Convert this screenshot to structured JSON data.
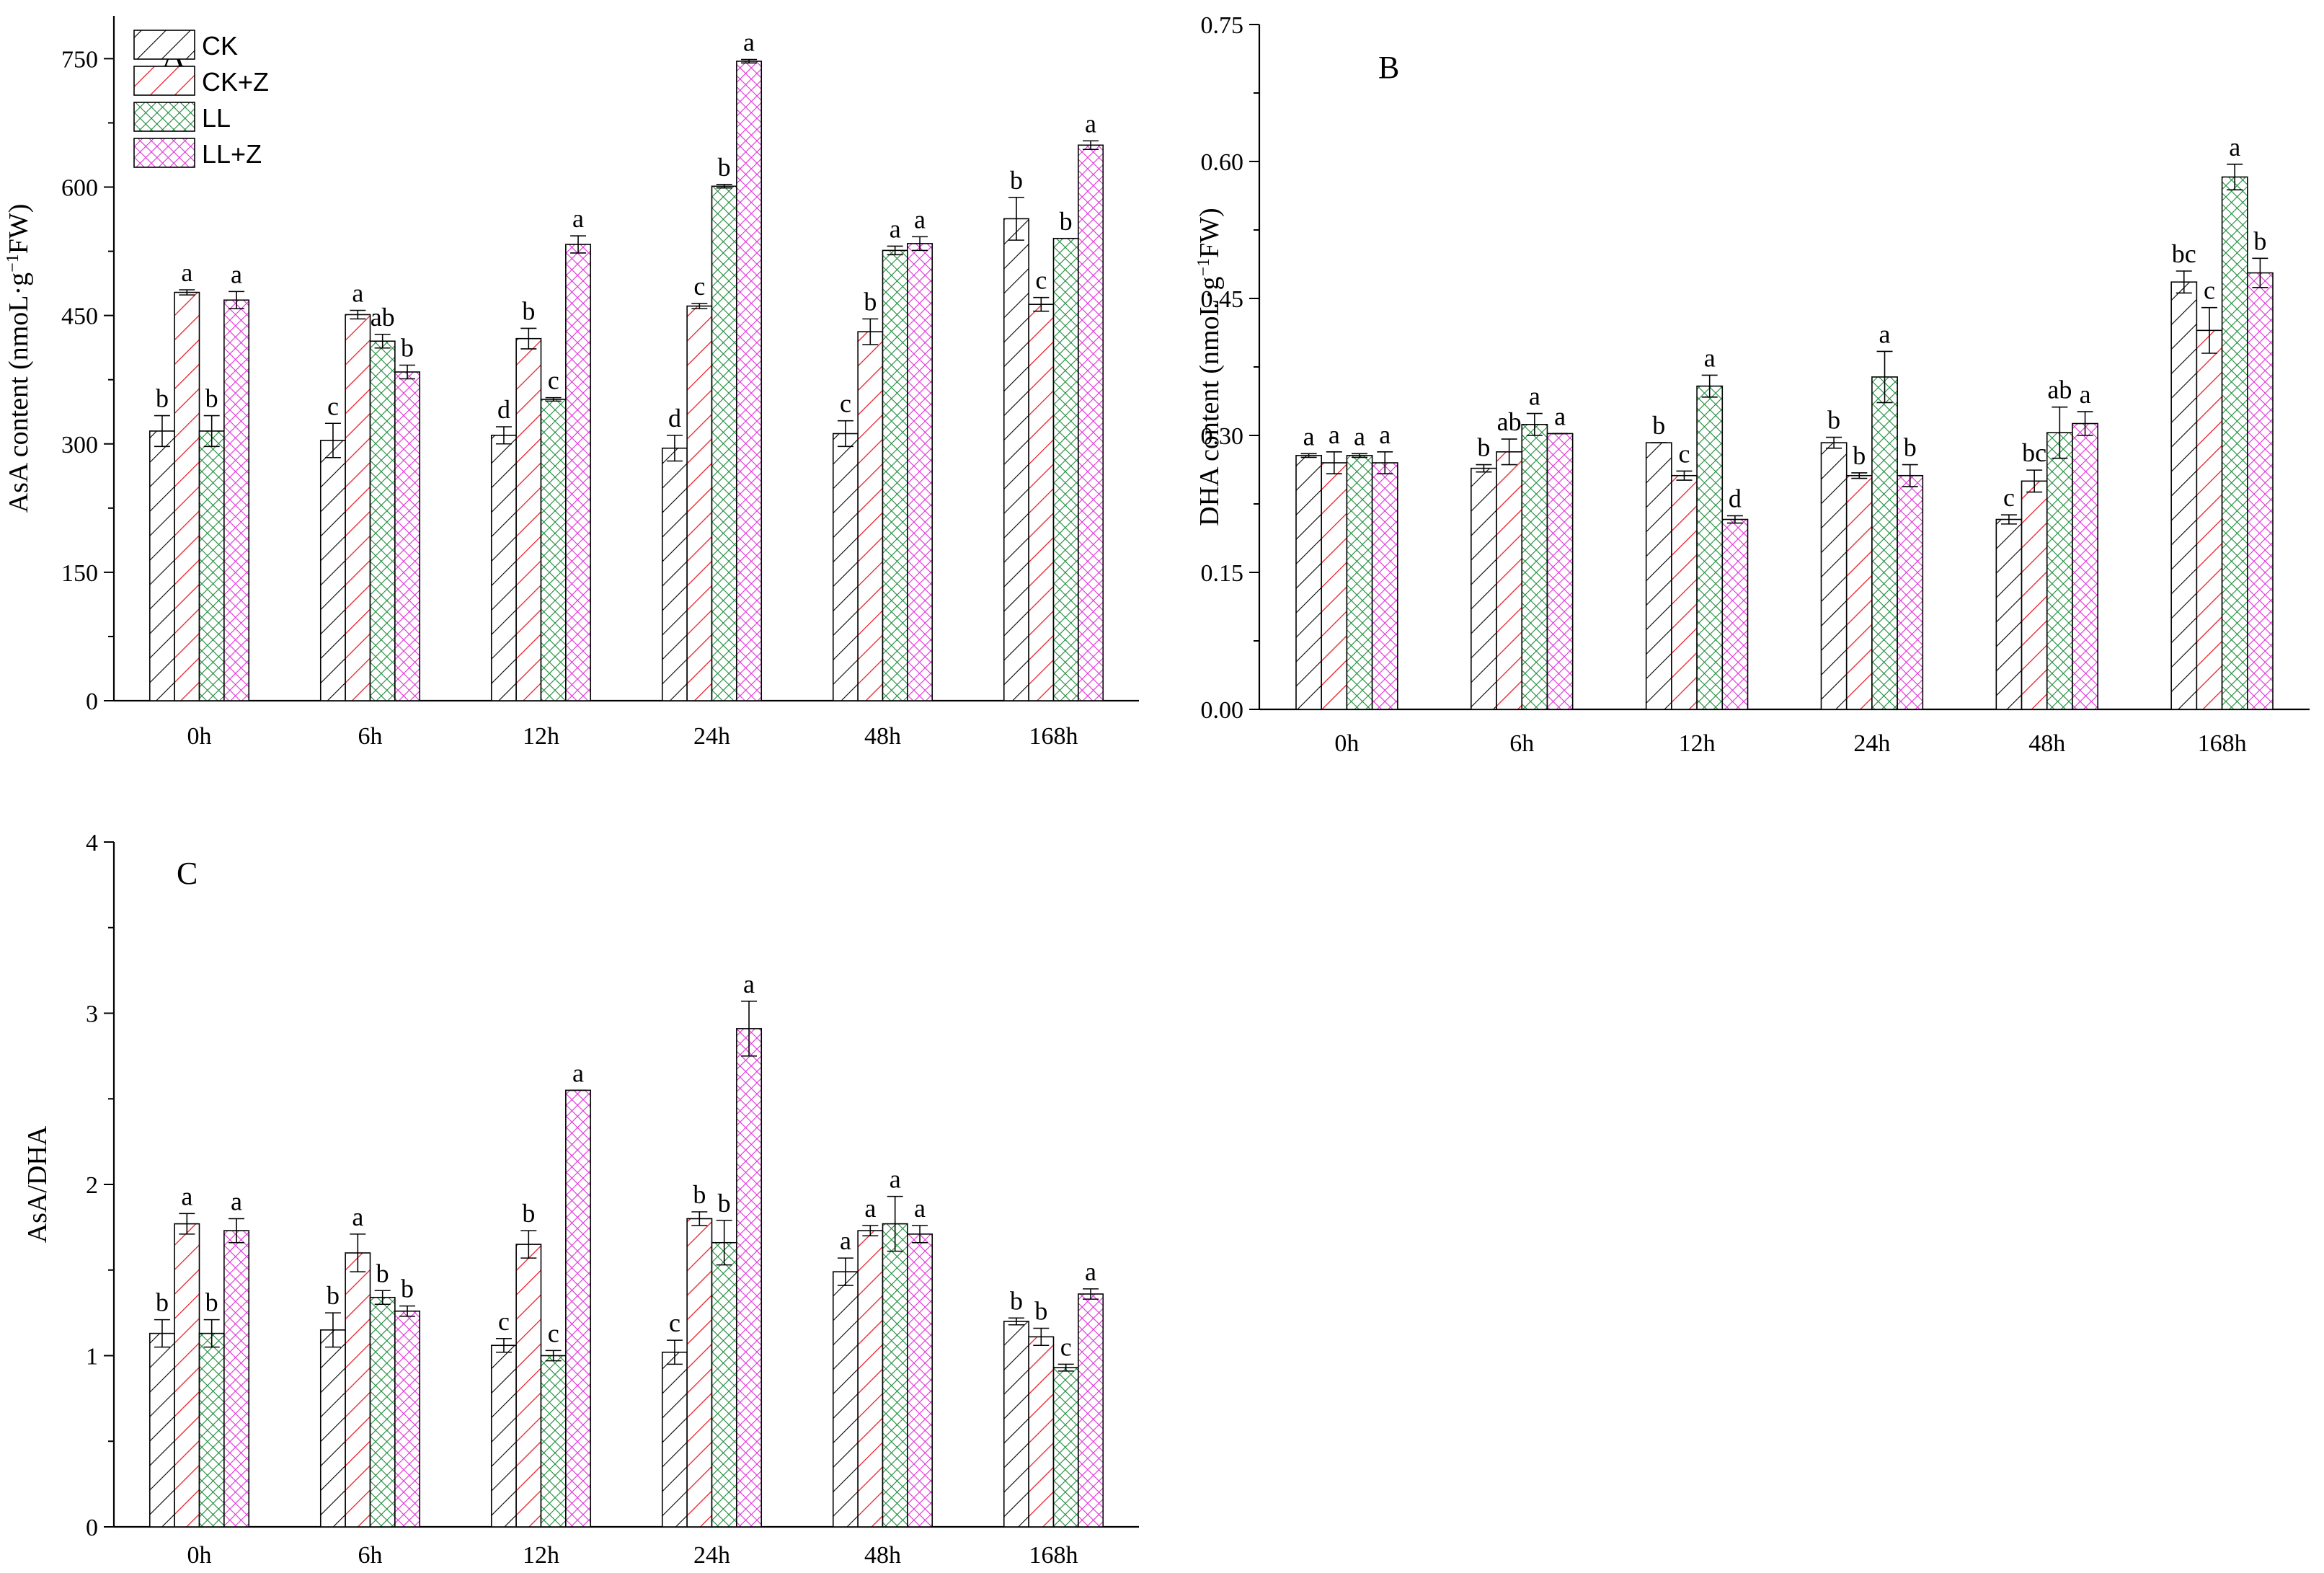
{
  "legend": [
    {
      "label": "CK",
      "color": "#000000",
      "pattern": "hatch"
    },
    {
      "label": "CK+Z",
      "color": "#e8202a",
      "pattern": "hatch"
    },
    {
      "label": "LL",
      "color": "#1d8a3a",
      "pattern": "cross"
    },
    {
      "label": "LL+Z",
      "color": "#e030d8",
      "pattern": "cross"
    }
  ],
  "chart_data": [
    {
      "panel": "A",
      "type": "bar",
      "ylabel_parts": [
        "AsA content (nmoL·g",
        "−1",
        "FW)"
      ],
      "categories": [
        "0h",
        "6h",
        "12h",
        "24h",
        "48h",
        "168h"
      ],
      "ylim": [
        0,
        800
      ],
      "yticks": [
        0,
        150,
        300,
        450,
        600,
        750
      ],
      "ytick_labels": [
        "0",
        "150",
        "300",
        "450",
        "600",
        "750"
      ],
      "series": [
        {
          "name": "CK",
          "values": [
            315,
            304,
            310,
            295,
            312,
            563
          ],
          "errors": [
            18,
            20,
            10,
            15,
            15,
            25
          ],
          "letters": [
            "b",
            "c",
            "d",
            "d",
            "c",
            "b"
          ]
        },
        {
          "name": "CK+Z",
          "values": [
            477,
            451,
            423,
            461,
            431,
            463
          ],
          "errors": [
            3,
            5,
            12,
            3,
            15,
            8
          ],
          "letters": [
            "a",
            "a",
            "b",
            "c",
            "b",
            "c"
          ]
        },
        {
          "name": "LL",
          "values": [
            315,
            420,
            352,
            601,
            526,
            540
          ],
          "errors": [
            18,
            8,
            2,
            2,
            5,
            0
          ],
          "letters": [
            "b",
            "ab",
            "c",
            "b",
            "a",
            "b"
          ]
        },
        {
          "name": "LL+Z",
          "values": [
            468,
            384,
            533,
            747,
            534,
            649
          ],
          "errors": [
            10,
            8,
            10,
            2,
            8,
            5
          ],
          "letters": [
            "a",
            "b",
            "a",
            "a",
            "a",
            "a"
          ]
        }
      ]
    },
    {
      "panel": "B",
      "type": "bar",
      "ylabel_parts": [
        "DHA content (nmoL·g",
        "−1",
        "FW)"
      ],
      "categories": [
        "0h",
        "6h",
        "12h",
        "24h",
        "48h",
        "168h"
      ],
      "ylim": [
        0,
        0.75
      ],
      "yticks": [
        0,
        0.15,
        0.3,
        0.45,
        0.6,
        0.75
      ],
      "ytick_labels": [
        "0.00",
        "0.15",
        "0.30",
        "0.45",
        "0.60",
        "0.75"
      ],
      "series": [
        {
          "name": "CK",
          "values": [
            0.278,
            0.264,
            0.292,
            0.292,
            0.208,
            0.468
          ],
          "errors": [
            0.002,
            0.004,
            0,
            0.006,
            0.005,
            0.012
          ],
          "letters": [
            "a",
            "b",
            "b",
            "b",
            "c",
            "bc"
          ]
        },
        {
          "name": "CK+Z",
          "values": [
            0.27,
            0.282,
            0.256,
            0.256,
            0.25,
            0.415
          ],
          "errors": [
            0.012,
            0.014,
            0.005,
            0.003,
            0.012,
            0.025
          ],
          "letters": [
            "a",
            "ab",
            "c",
            "b",
            "bc",
            "c"
          ]
        },
        {
          "name": "LL",
          "values": [
            0.278,
            0.312,
            0.354,
            0.364,
            0.303,
            0.583
          ],
          "errors": [
            0.002,
            0.012,
            0.012,
            0.028,
            0.028,
            0.014
          ],
          "letters": [
            "a",
            "a",
            "a",
            "a",
            "ab",
            "a"
          ]
        },
        {
          "name": "LL+Z",
          "values": [
            0.27,
            0.302,
            0.208,
            0.256,
            0.313,
            0.478
          ],
          "errors": [
            0.012,
            0,
            0.004,
            0.012,
            0.013,
            0.016
          ],
          "letters": [
            "a",
            "a",
            "d",
            "b",
            "a",
            "b"
          ]
        }
      ]
    },
    {
      "panel": "C",
      "type": "bar",
      "ylabel_parts": [
        "AsA/DHA"
      ],
      "categories": [
        "0h",
        "6h",
        "12h",
        "24h",
        "48h",
        "168h"
      ],
      "ylim": [
        0,
        4
      ],
      "yticks": [
        0,
        1,
        2,
        3,
        4
      ],
      "ytick_labels": [
        "0",
        "1",
        "2",
        "3",
        "4"
      ],
      "series": [
        {
          "name": "CK",
          "values": [
            1.13,
            1.15,
            1.06,
            1.02,
            1.49,
            1.2
          ],
          "errors": [
            0.08,
            0.1,
            0.04,
            0.07,
            0.08,
            0.02
          ],
          "letters": [
            "b",
            "b",
            "c",
            "c",
            "a",
            "b"
          ]
        },
        {
          "name": "CK+Z",
          "values": [
            1.77,
            1.6,
            1.65,
            1.8,
            1.73,
            1.11
          ],
          "errors": [
            0.06,
            0.11,
            0.08,
            0.04,
            0.03,
            0.05
          ],
          "letters": [
            "a",
            "a",
            "b",
            "b",
            "a",
            "b"
          ]
        },
        {
          "name": "LL",
          "values": [
            1.13,
            1.34,
            1.0,
            1.66,
            1.77,
            0.93
          ],
          "errors": [
            0.08,
            0.04,
            0.03,
            0.13,
            0.16,
            0.02
          ],
          "letters": [
            "b",
            "b",
            "c",
            "b",
            "a",
            "c"
          ]
        },
        {
          "name": "LL+Z",
          "values": [
            1.73,
            1.26,
            2.55,
            2.91,
            1.71,
            1.36
          ],
          "errors": [
            0.07,
            0.03,
            0,
            0.16,
            0.05,
            0.03
          ],
          "letters": [
            "a",
            "b",
            "a",
            "a",
            "a",
            "a"
          ]
        }
      ]
    }
  ]
}
